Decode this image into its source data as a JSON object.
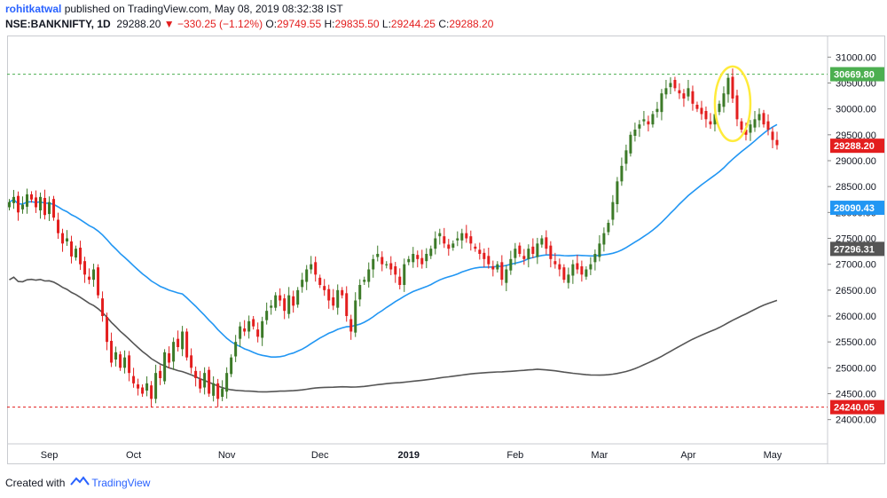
{
  "header": {
    "author": "rohitkatwal",
    "published": "published on TradingView.com, May 08, 2019 08:32:38 IST",
    "symbol": "NSE:BANKNIFTY, 1D",
    "last": "29288.20",
    "change": "−330.25 (−1.12%)",
    "o_label": "O:",
    "o_value": "29749.55",
    "h_label": "H:",
    "h_value": "29835.50",
    "l_label": "L:",
    "l_value": "29244.25",
    "c_label": "C:",
    "c_value": "29288.20"
  },
  "footer": {
    "created_with": "Created with",
    "brand": "TradingView"
  },
  "chart_data": {
    "type": "candlestick",
    "ylim": [
      23600,
      31400
    ],
    "y_ticks": [
      24000,
      24500,
      25000,
      25500,
      26000,
      26500,
      27000,
      27500,
      28000,
      28500,
      29000,
      29500,
      30000,
      30500,
      31000
    ],
    "y_tick_labels": [
      "24000.00",
      "24500.00",
      "25000.00",
      "25500.00",
      "26000.00",
      "26500.00",
      "27000.00",
      "27500.00",
      "28000.00",
      "28500.00",
      "29000.00",
      "29500.00",
      "30000.00",
      "30500.00",
      "31000.00"
    ],
    "x_ticks": [
      {
        "label": "Sep",
        "bar": 9
      },
      {
        "label": "Oct",
        "bar": 28
      },
      {
        "label": "Nov",
        "bar": 49
      },
      {
        "label": "Dec",
        "bar": 70
      },
      {
        "label": "2019",
        "bar": 90
      },
      {
        "label": "Feb",
        "bar": 114
      },
      {
        "label": "Mar",
        "bar": 133
      },
      {
        "label": "Apr",
        "bar": 153
      },
      {
        "label": "May",
        "bar": 172
      }
    ],
    "price_tags": [
      {
        "value": 30669.8,
        "label": "30669.80",
        "color": "#4caf50",
        "dashed": true
      },
      {
        "value": 29288.2,
        "label": "29288.20",
        "color": "#e31e1e",
        "dashed": false
      },
      {
        "value": 28090.43,
        "label": "28090.43",
        "color": "#2196f3",
        "dashed": false
      },
      {
        "value": 27296.31,
        "label": "27296.31",
        "color": "#555555",
        "dashed": false
      },
      {
        "value": 24240.05,
        "label": "24240.05",
        "color": "#e31e1e",
        "dashed": true
      }
    ],
    "up_color": "#3c7a28",
    "down_color": "#e31e1e",
    "closes": [
      28200,
      28300,
      28000,
      28150,
      28350,
      28250,
      28100,
      28300,
      27950,
      28200,
      27900,
      27600,
      27400,
      27500,
      27150,
      27300,
      27000,
      26800,
      26700,
      26900,
      26400,
      26000,
      25500,
      25100,
      25300,
      25000,
      25200,
      24900,
      24700,
      24600,
      24500,
      24700,
      24400,
      24900,
      24800,
      25300,
      25100,
      25500,
      25400,
      25700,
      25200,
      25000,
      24800,
      24600,
      24900,
      24500,
      24700,
      24400,
      24600,
      24900,
      25200,
      25500,
      25800,
      25700,
      25900,
      25800,
      25600,
      25900,
      26100,
      26200,
      26400,
      26300,
      26100,
      26400,
      26200,
      26500,
      26700,
      26900,
      27000,
      26800,
      26600,
      26500,
      26300,
      26200,
      26500,
      26400,
      26000,
      25700,
      26300,
      26600,
      26700,
      26900,
      27100,
      27200,
      27000,
      27000,
      26900,
      26800,
      26600,
      27000,
      27100,
      27200,
      27100,
      27000,
      27200,
      27300,
      27500,
      27600,
      27400,
      27300,
      27400,
      27500,
      27600,
      27500,
      27400,
      27300,
      27200,
      27100,
      27000,
      26900,
      27000,
      26700,
      26900,
      27100,
      27300,
      27200,
      27100,
      27300,
      27200,
      27400,
      27500,
      27300,
      27100,
      27000,
      26900,
      26700,
      26800,
      27000,
      26900,
      26800,
      26900,
      27000,
      27200,
      27400,
      27600,
      27800,
      28200,
      28600,
      28900,
      29200,
      29500,
      29600,
      29700,
      29800,
      29700,
      29900,
      30000,
      30300,
      30400,
      30500,
      30400,
      30300,
      30200,
      30400,
      30100,
      30000,
      29900,
      29800,
      29700,
      29900,
      30100,
      30300,
      30600,
      30200,
      29800,
      29600,
      29500,
      29700,
      29800,
      29900,
      29700,
      29600,
      29400,
      29300
    ]
  }
}
